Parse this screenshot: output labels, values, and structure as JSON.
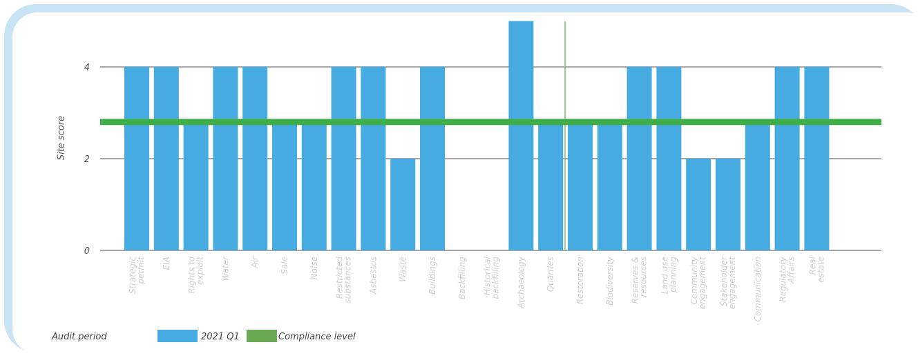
{
  "chart_data": {
    "type": "bar",
    "ylabel": "Site score",
    "ylim": [
      0,
      5
    ],
    "yticks": [
      0,
      2,
      4
    ],
    "grid": true,
    "categories": [
      "Strategic permit",
      "EIA",
      "Rights to exploit",
      "Water",
      "Air",
      "Sale",
      "Noise",
      "Restricted substances",
      "Asbestos",
      "Waste",
      "Buildings",
      "Backfilling",
      "Historical backfilling",
      "Archaeology",
      "Quarries",
      "Restoration",
      "Biodiversity",
      "Reserves & resources",
      "Land use planning",
      "Community engagement",
      "Stakeholder engagement",
      "Communication",
      "Regulatory Affairs",
      "Real estate"
    ],
    "series": [
      {
        "name": "2021 Q1",
        "color": "#45abe1",
        "values": [
          4,
          4,
          2.75,
          4,
          4,
          2.75,
          2.75,
          4,
          4,
          2,
          4,
          null,
          null,
          5,
          2.75,
          2.75,
          2.75,
          4,
          4,
          2,
          2,
          2.75,
          4,
          4
        ]
      }
    ],
    "reference_line": {
      "name": "Compliance level",
      "value": 2.8,
      "color": "#3fae49"
    },
    "legend": {
      "title": "Audit period",
      "placement": "bottom-left"
    }
  }
}
